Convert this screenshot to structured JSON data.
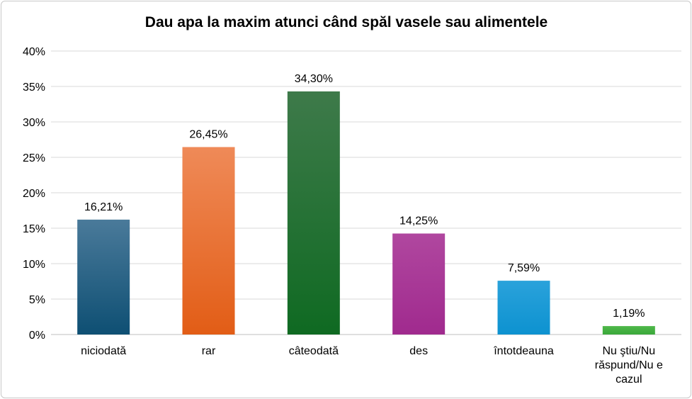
{
  "chart_data": {
    "type": "bar",
    "title": "Dau apa la maxim atunci când spăl vasele sau alimentele",
    "xlabel": "",
    "ylabel": "",
    "ylim": [
      0,
      40
    ],
    "y_ticks": [
      "0%",
      "5%",
      "10%",
      "15%",
      "20%",
      "25%",
      "30%",
      "35%",
      "40%"
    ],
    "grid": true,
    "legend": "none",
    "categories": [
      [
        "niciodată"
      ],
      [
        "rar"
      ],
      [
        "câteodată"
      ],
      [
        "des"
      ],
      [
        "întotdeauna"
      ],
      [
        "Nu ştiu/Nu",
        "răspund/Nu e",
        "cazul"
      ]
    ],
    "values": [
      16.21,
      26.45,
      34.3,
      14.25,
      7.59,
      1.19
    ],
    "data_labels": [
      "16,21%",
      "26,45%",
      "34,30%",
      "14,25%",
      "7,59%",
      "1,19%"
    ],
    "colors": [
      [
        "#4a7a9a",
        "#0e4f73"
      ],
      [
        "#ef8a58",
        "#e25d16"
      ],
      [
        "#3e7a4a",
        "#0f6a22"
      ],
      [
        "#b0479f",
        "#a02a8e"
      ],
      [
        "#2aa2db",
        "#0d92d0"
      ],
      [
        "#4fb84a",
        "#3aa83a"
      ]
    ]
  }
}
